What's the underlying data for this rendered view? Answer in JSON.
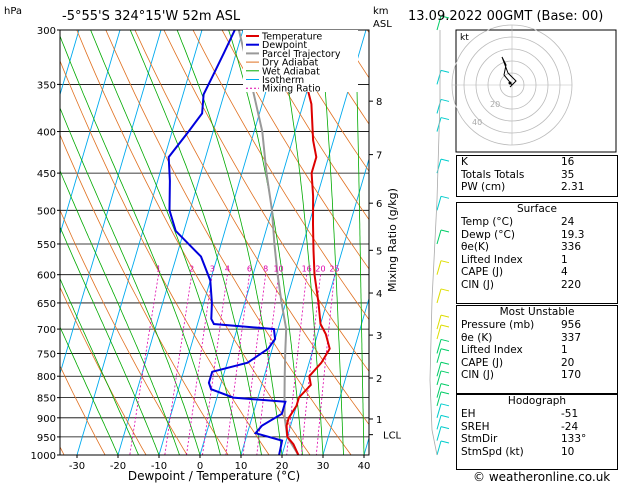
{
  "header": {
    "location": "-5°55'S 324°15'W 52m ASL",
    "date": "13.09.2022 00GMT (Base: 00)",
    "hpa_label": "hPa",
    "km_label": "km",
    "asl_label": "ASL",
    "credit": "© weatheronline.co.uk"
  },
  "chart_data": {
    "type": "line",
    "title": "-5°55'S 324°15'W 52m ASL",
    "xlabel": "Dewpoint / Temperature (°C)",
    "ylabel": "Mixing Ratio (g/kg)",
    "xlim": [
      -35,
      40
    ],
    "pressure_ticks": [
      300,
      350,
      400,
      450,
      500,
      550,
      600,
      650,
      700,
      750,
      800,
      850,
      900,
      950,
      1000
    ],
    "x_ticks": [
      -30,
      -20,
      -10,
      0,
      10,
      20,
      30,
      40
    ],
    "km_ticks": [
      {
        "label": "8",
        "p": 367
      },
      {
        "label": "7",
        "p": 427
      },
      {
        "label": "6",
        "p": 490
      },
      {
        "label": "5",
        "p": 560
      },
      {
        "label": "4",
        "p": 632
      },
      {
        "label": "3",
        "p": 712
      },
      {
        "label": "2",
        "p": 804
      },
      {
        "label": "1",
        "p": 903
      }
    ],
    "lcl": {
      "label": "LCL",
      "p": 944
    },
    "mixing_ratio_labels": [
      "1",
      "2",
      "3",
      "4",
      "6",
      "8",
      "10",
      "16",
      "20",
      "25"
    ],
    "legend": [
      "Temperature",
      "Dewpoint",
      "Parcel Trajectory",
      "Dry Adiabat",
      "Wet Adiabat",
      "Isotherm",
      "Mixing Ratio"
    ],
    "colors": {
      "temperature": "#dd0000",
      "dewpoint": "#0000dd",
      "parcel": "#999999",
      "dry_adiabat": "#e07020",
      "wet_adiabat": "#00aa00",
      "isotherm": "#00aaee",
      "mixing_ratio": "#dd00aa"
    },
    "series": [
      {
        "name": "Temperature",
        "points": [
          [
            24,
            1000
          ],
          [
            22,
            970
          ],
          [
            20,
            950
          ],
          [
            19,
            920
          ],
          [
            19,
            900
          ],
          [
            20,
            870
          ],
          [
            20,
            850
          ],
          [
            22,
            820
          ],
          [
            21,
            800
          ],
          [
            23,
            770
          ],
          [
            24,
            740
          ],
          [
            22,
            710
          ],
          [
            20,
            690
          ],
          [
            18,
            650
          ],
          [
            15,
            600
          ],
          [
            13,
            560
          ],
          [
            11,
            520
          ],
          [
            9,
            480
          ],
          [
            7,
            450
          ],
          [
            7,
            430
          ],
          [
            5,
            410
          ],
          [
            2,
            370
          ],
          [
            -2,
            340
          ],
          [
            -6,
            300
          ]
        ]
      },
      {
        "name": "Dewpoint",
        "points": [
          [
            19.3,
            1000
          ],
          [
            19,
            960
          ],
          [
            12,
            940
          ],
          [
            13,
            920
          ],
          [
            17,
            890
          ],
          [
            17,
            860
          ],
          [
            4,
            850
          ],
          [
            -2,
            830
          ],
          [
            -3,
            815
          ],
          [
            -3,
            790
          ],
          [
            5,
            770
          ],
          [
            9,
            740
          ],
          [
            10,
            720
          ],
          [
            9,
            700
          ],
          [
            -6,
            690
          ],
          [
            -7,
            680
          ],
          [
            -8,
            650
          ],
          [
            -10,
            610
          ],
          [
            -14,
            570
          ],
          [
            -22,
            530
          ],
          [
            -25,
            500
          ],
          [
            -27,
            460
          ],
          [
            -29,
            430
          ],
          [
            -26,
            400
          ],
          [
            -24,
            380
          ],
          [
            -25,
            360
          ],
          [
            -24,
            340
          ],
          [
            -23,
            320
          ],
          [
            -22,
            300
          ]
        ]
      },
      {
        "name": "Parcel Trajectory",
        "points": [
          [
            24,
            1000
          ],
          [
            20,
            950
          ],
          [
            18,
            900
          ],
          [
            16.5,
            850
          ],
          [
            15,
            800
          ],
          [
            13.5,
            750
          ],
          [
            12,
            700
          ],
          [
            9,
            650
          ],
          [
            6,
            600
          ],
          [
            3,
            550
          ],
          [
            0,
            500
          ],
          [
            -4,
            450
          ],
          [
            -8,
            400
          ],
          [
            -14,
            350
          ],
          [
            -21,
            300
          ]
        ]
      }
    ],
    "wind_barbs_p": [
      1000,
      960,
      930,
      900,
      870,
      850,
      820,
      800,
      770,
      750,
      720,
      700,
      650,
      600,
      550,
      500,
      450,
      400,
      380,
      350,
      300
    ]
  },
  "indices": {
    "rows": [
      {
        "label": "K",
        "value": "16"
      },
      {
        "label": "Totals Totals",
        "value": "35"
      },
      {
        "label": "PW (cm)",
        "value": "2.31"
      }
    ]
  },
  "surface": {
    "title": "Surface",
    "rows": [
      {
        "label": "Temp (°C)",
        "value": "24"
      },
      {
        "label": "Dewp (°C)",
        "value": "19.3"
      },
      {
        "label": "θe(K)",
        "value": "336"
      },
      {
        "label": "Lifted Index",
        "value": "1"
      },
      {
        "label": "CAPE (J)",
        "value": "4"
      },
      {
        "label": "CIN (J)",
        "value": "220"
      }
    ]
  },
  "unstable": {
    "title": "Most Unstable",
    "rows": [
      {
        "label": "Pressure (mb)",
        "value": "956"
      },
      {
        "label": "θe (K)",
        "value": "337"
      },
      {
        "label": "Lifted Index",
        "value": "1"
      },
      {
        "label": "CAPE (J)",
        "value": "20"
      },
      {
        "label": "CIN (J)",
        "value": "170"
      }
    ]
  },
  "hodograph": {
    "title": "Hodograph",
    "unit": "kt",
    "ring_labels": [
      "20",
      "40"
    ],
    "rows": [
      {
        "label": "EH",
        "value": "-51"
      },
      {
        "label": "SREH",
        "value": "-24"
      },
      {
        "label": "StmDir",
        "value": "133°"
      },
      {
        "label": "StmSpd (kt)",
        "value": "10"
      }
    ]
  }
}
